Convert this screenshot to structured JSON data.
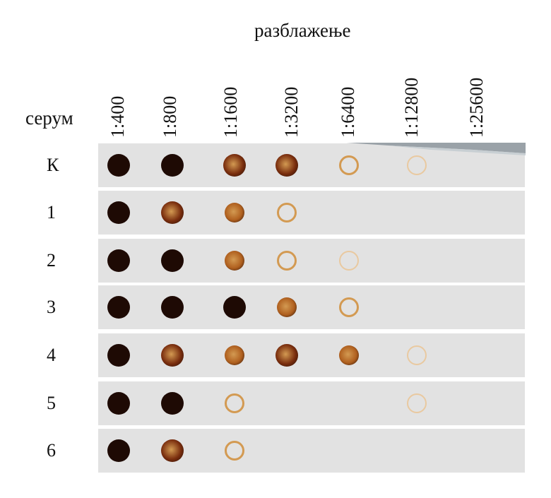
{
  "title": "разблажење",
  "row_header": "серум",
  "dilutions": [
    "1:400",
    "1:800",
    "1:1600",
    "1:3200",
    "1:6400",
    "1:12800",
    "1:25600"
  ],
  "sera": [
    "К",
    "1",
    "2",
    "3",
    "4",
    "5",
    "6"
  ],
  "intensity_scale": "0 = no spot, 1 = faint ring, 5 = solid dark spot",
  "spot_intensity": [
    [
      5,
      5,
      4,
      4,
      2,
      1,
      0
    ],
    [
      5,
      4,
      3,
      2,
      0,
      0,
      0
    ],
    [
      5,
      5,
      3,
      2,
      1,
      0,
      0
    ],
    [
      5,
      5,
      5,
      3,
      2,
      0,
      0
    ],
    [
      5,
      4,
      3,
      4,
      3,
      1,
      0
    ],
    [
      5,
      5,
      2,
      0,
      0,
      1,
      0
    ],
    [
      5,
      4,
      2,
      0,
      0,
      0,
      0
    ]
  ],
  "colors": {
    "strip": "#e2e2e2",
    "level_1": "#e9c9a0",
    "level_2": "#d39a52",
    "level_3": "#b0601f",
    "level_4": "#7a2e0e",
    "level_5": "#1e0a04"
  }
}
